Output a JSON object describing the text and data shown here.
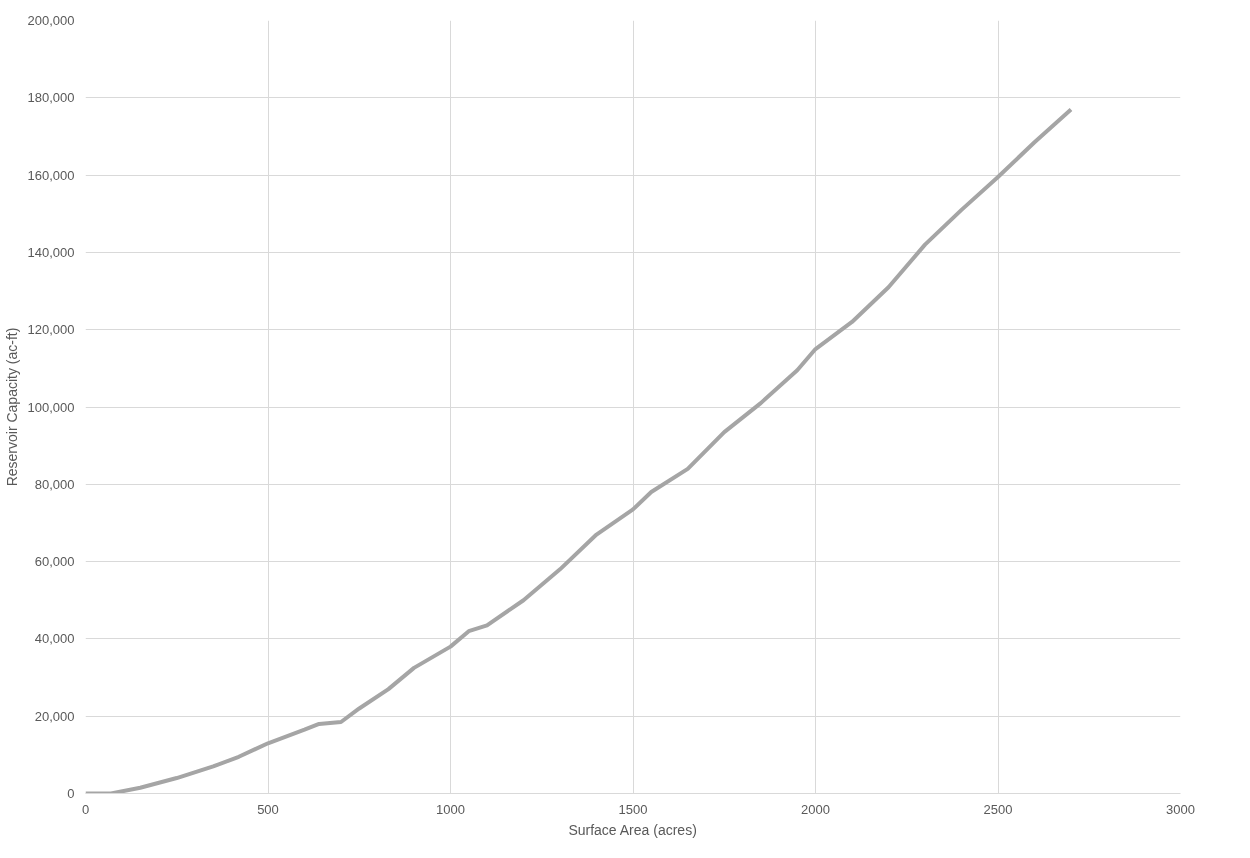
{
  "chart_data": {
    "type": "line",
    "xlabel": "Surface Area (acres)",
    "ylabel": "Reservoir Capacity (ac-ft)",
    "x": [
      0,
      70,
      150,
      250,
      350,
      420,
      500,
      600,
      640,
      700,
      750,
      830,
      900,
      1000,
      1050,
      1100,
      1200,
      1300,
      1400,
      1500,
      1550,
      1650,
      1750,
      1850,
      1950,
      2000,
      2100,
      2200,
      2300,
      2400,
      2500,
      2600,
      2700
    ],
    "series": [
      {
        "color": "#a5a5a5",
        "values": [
          0,
          0,
          1500,
          4000,
          7000,
          9500,
          13000,
          16500,
          18000,
          18500,
          22000,
          27000,
          32500,
          38000,
          42000,
          43500,
          50000,
          58000,
          67000,
          73500,
          78000,
          84000,
          93500,
          101000,
          109500,
          115000,
          122000,
          131000,
          142000,
          151000,
          159500,
          168500,
          177000
        ]
      }
    ],
    "xlim": [
      0,
      3000
    ],
    "xticks": [
      0,
      500,
      1000,
      1500,
      2000,
      2500,
      3000
    ],
    "ylim": [
      0,
      200000
    ],
    "yticks": [
      {
        "value": 0,
        "label": "0"
      },
      {
        "value": 20000,
        "label": "20,000"
      },
      {
        "value": 40000,
        "label": "40,000"
      },
      {
        "value": 60000,
        "label": "60,000"
      },
      {
        "value": 80000,
        "label": "80,000"
      },
      {
        "value": 100000,
        "label": "100,000"
      },
      {
        "value": 120000,
        "label": "120,000"
      },
      {
        "value": 140000,
        "label": "140,000"
      },
      {
        "value": 160000,
        "label": "160,000"
      },
      {
        "value": 180000,
        "label": "180,000"
      },
      {
        "value": 200000,
        "label": "200,000"
      }
    ],
    "grid": true,
    "marker": "none",
    "line_style": "solid"
  }
}
